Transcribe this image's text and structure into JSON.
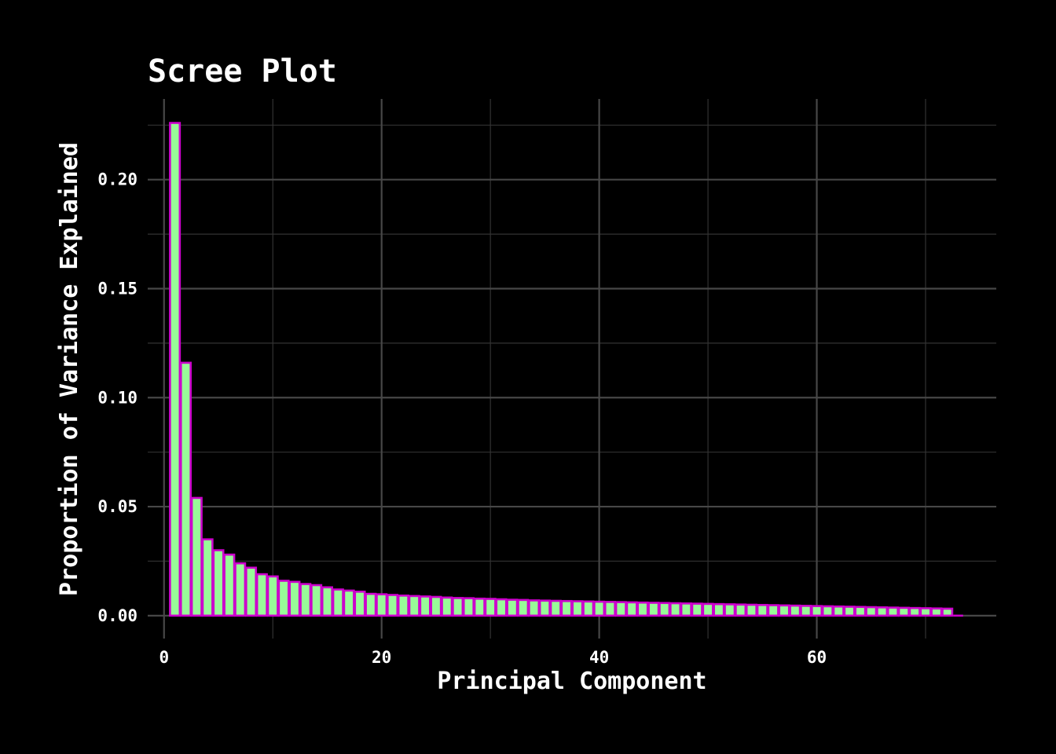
{
  "chart_data": {
    "type": "bar",
    "title": "Scree Plot",
    "xlabel": "Principal Component",
    "ylabel": "Proportion of Variance Explained",
    "xlim": [
      -1.5,
      76.5
    ],
    "ylim": [
      -0.0105,
      0.237
    ],
    "x_ticks": [
      0,
      20,
      40,
      60
    ],
    "x_tick_labels": [
      "0",
      "20",
      "40",
      "60"
    ],
    "y_ticks": [
      0.0,
      0.05,
      0.1,
      0.15,
      0.2
    ],
    "y_tick_labels": [
      "0.00",
      "0.05",
      "0.10",
      "0.15",
      "0.20"
    ],
    "grid": true,
    "fill_color": "#98fb98",
    "edge_color": "#cc00cc",
    "background": "#000000",
    "x": [
      1,
      2,
      3,
      4,
      5,
      6,
      7,
      8,
      9,
      10,
      11,
      12,
      13,
      14,
      15,
      16,
      17,
      18,
      19,
      20,
      21,
      22,
      23,
      24,
      25,
      26,
      27,
      28,
      29,
      30,
      31,
      32,
      33,
      34,
      35,
      36,
      37,
      38,
      39,
      40,
      41,
      42,
      43,
      44,
      45,
      46,
      47,
      48,
      49,
      50,
      51,
      52,
      53,
      54,
      55,
      56,
      57,
      58,
      59,
      60,
      61,
      62,
      63,
      64,
      65,
      66,
      67,
      68,
      69,
      70,
      71,
      72
    ],
    "values": [
      0.226,
      0.116,
      0.054,
      0.035,
      0.03,
      0.028,
      0.024,
      0.022,
      0.019,
      0.018,
      0.016,
      0.0155,
      0.0145,
      0.014,
      0.013,
      0.012,
      0.0115,
      0.011,
      0.01,
      0.0098,
      0.0095,
      0.0092,
      0.009,
      0.0088,
      0.0086,
      0.0083,
      0.0081,
      0.008,
      0.0078,
      0.0077,
      0.0075,
      0.0073,
      0.0072,
      0.007,
      0.0069,
      0.0068,
      0.0067,
      0.0066,
      0.0065,
      0.0064,
      0.0063,
      0.0062,
      0.0061,
      0.006,
      0.0059,
      0.0058,
      0.0057,
      0.0056,
      0.0055,
      0.0054,
      0.0053,
      0.0052,
      0.0051,
      0.005,
      0.0049,
      0.0048,
      0.0047,
      0.0046,
      0.0045,
      0.0044,
      0.0043,
      0.0042,
      0.0041,
      0.004,
      0.0039,
      0.0038,
      0.0037,
      0.0036,
      0.0035,
      0.0034,
      0.0033,
      0.0032
    ]
  }
}
